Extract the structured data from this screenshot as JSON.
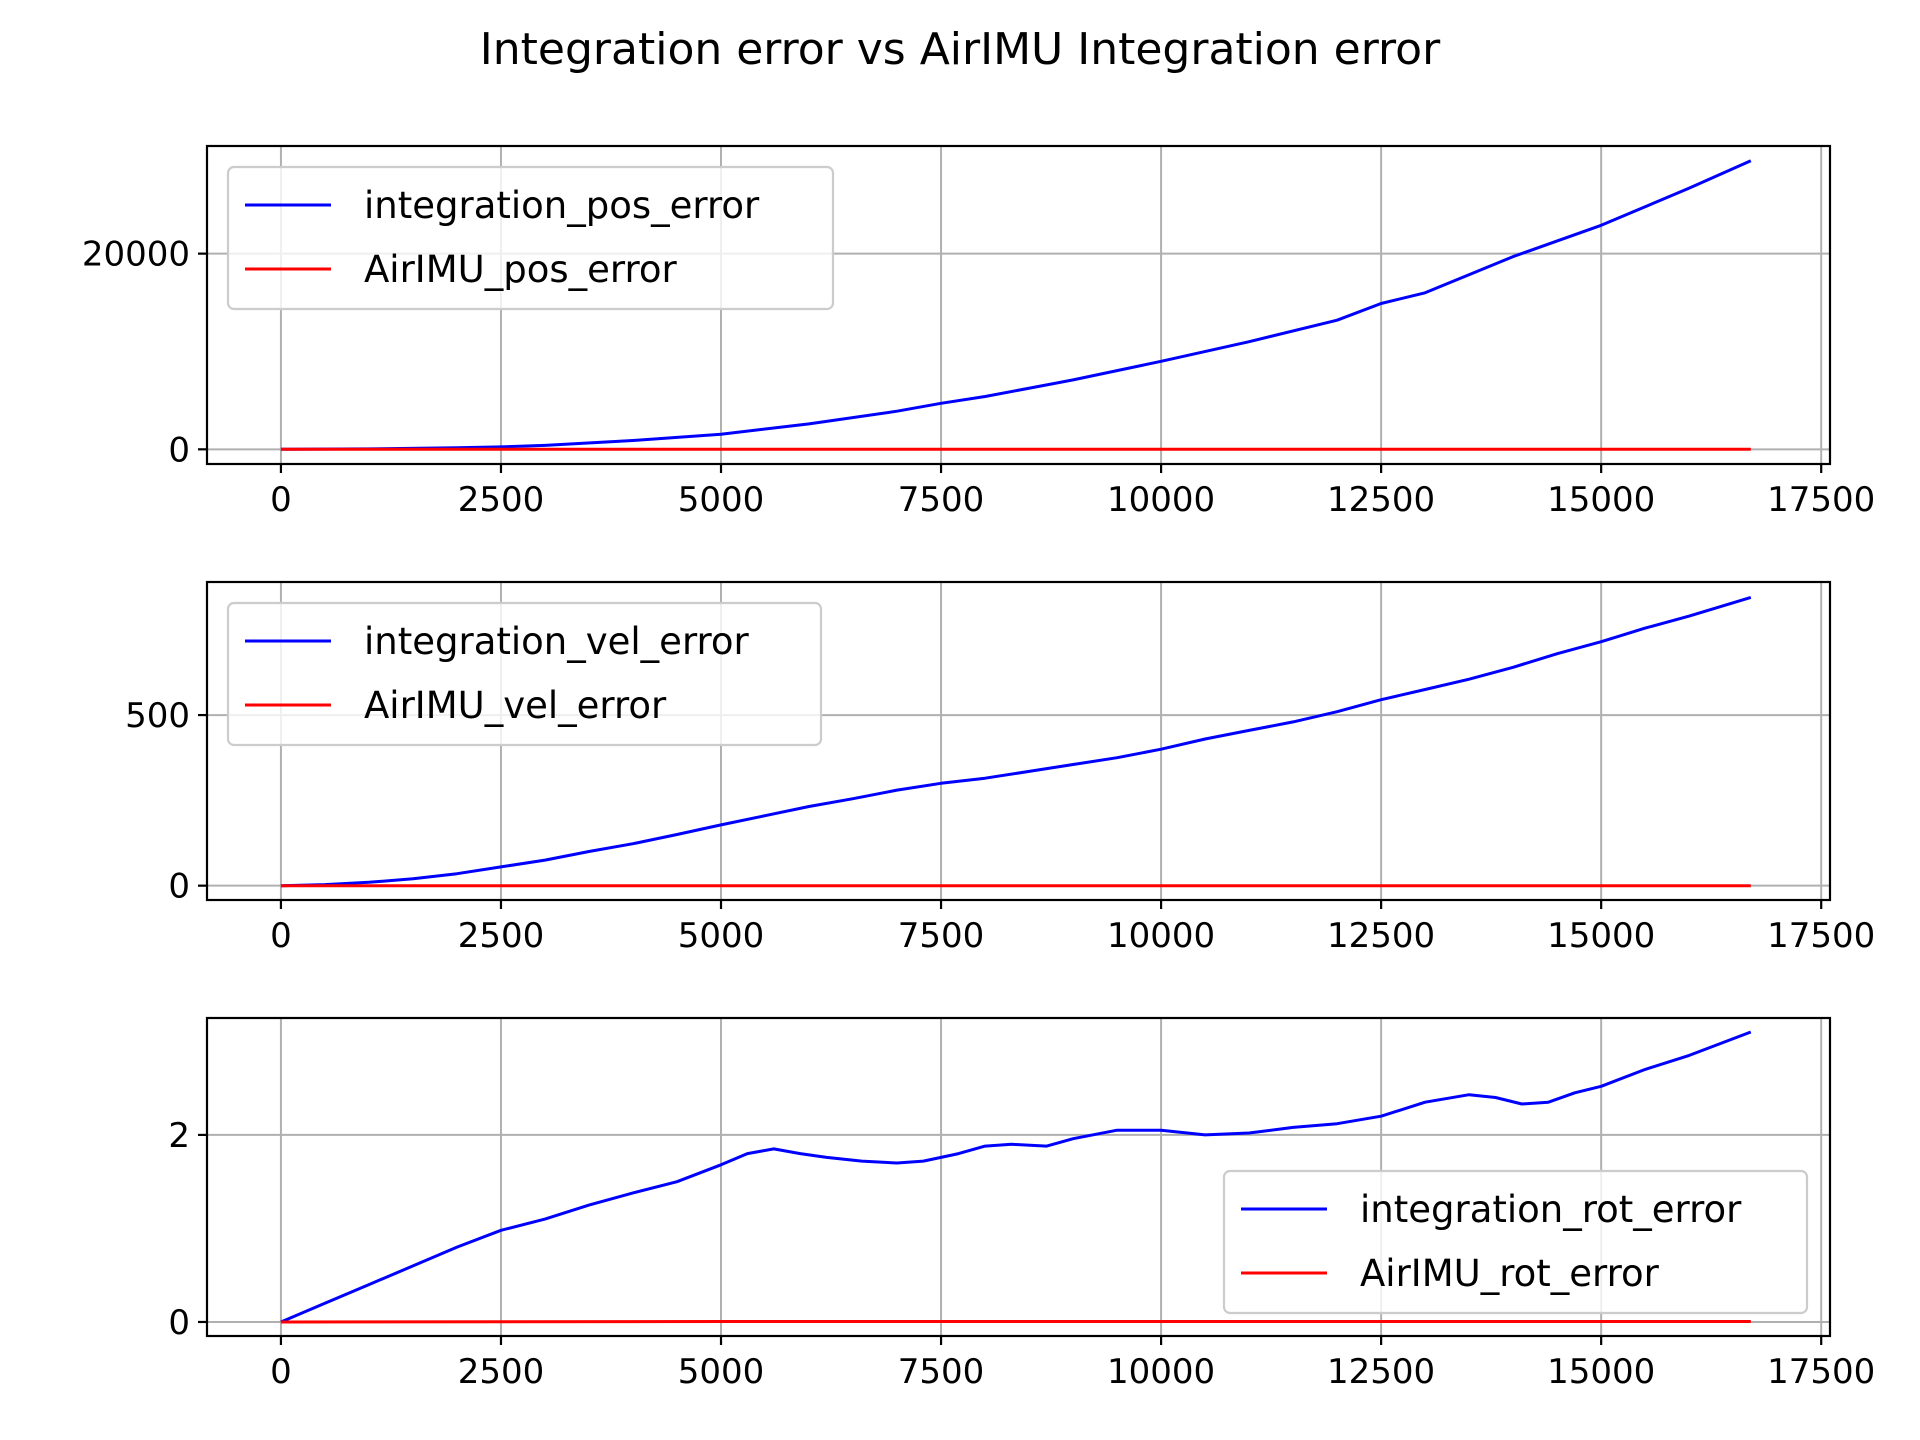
{
  "figure": {
    "title": "Integration error vs AirIMU Integration error"
  },
  "chart_data": [
    {
      "type": "line",
      "title": "",
      "xlabel": "",
      "ylabel": "",
      "xlim": [
        -840,
        17600
      ],
      "ylim": [
        -1500,
        31000
      ],
      "xticks": [
        0,
        2500,
        5000,
        7500,
        10000,
        12500,
        15000,
        17500
      ],
      "xtick_labels": [
        "0",
        "2500",
        "5000",
        "7500",
        "10000",
        "12500",
        "15000",
        "17500"
      ],
      "yticks": [
        0,
        20000
      ],
      "ytick_labels": [
        "0",
        "20000"
      ],
      "grid": true,
      "legend_position": "upper left",
      "series": [
        {
          "name": "integration_pos_error",
          "color": "#0000ff",
          "x": [
            0,
            1000,
            2000,
            2500,
            3000,
            4000,
            5000,
            6000,
            7000,
            7500,
            8000,
            9000,
            10000,
            11000,
            12000,
            12500,
            13000,
            14000,
            15000,
            16000,
            16700
          ],
          "y": [
            0,
            40,
            160,
            250,
            400,
            900,
            1550,
            2600,
            3900,
            4700,
            5400,
            7100,
            9000,
            11000,
            13200,
            14900,
            16000,
            19700,
            22900,
            26700,
            29500
          ]
        },
        {
          "name": "AirIMU_pos_error",
          "color": "#ff0000",
          "x": [
            0,
            5000,
            10000,
            16700
          ],
          "y": [
            0,
            0,
            0,
            0
          ]
        }
      ]
    },
    {
      "type": "line",
      "title": "",
      "xlabel": "",
      "ylabel": "",
      "xlim": [
        -840,
        17600
      ],
      "ylim": [
        -42,
        890
      ],
      "xticks": [
        0,
        2500,
        5000,
        7500,
        10000,
        12500,
        15000,
        17500
      ],
      "xtick_labels": [
        "0",
        "2500",
        "5000",
        "7500",
        "10000",
        "12500",
        "15000",
        "17500"
      ],
      "yticks": [
        0,
        500
      ],
      "ytick_labels": [
        "0",
        "500"
      ],
      "grid": true,
      "legend_position": "upper left",
      "series": [
        {
          "name": "integration_vel_error",
          "color": "#0000ff",
          "x": [
            0,
            500,
            1000,
            1500,
            2000,
            2500,
            3000,
            3500,
            4000,
            4500,
            5000,
            5500,
            6000,
            6500,
            7000,
            7500,
            8000,
            8500,
            9000,
            9500,
            10000,
            10500,
            11000,
            11500,
            12000,
            12500,
            13000,
            13500,
            14000,
            14500,
            15000,
            15500,
            16000,
            16700
          ],
          "y": [
            0,
            3,
            10,
            20,
            35,
            55,
            75,
            100,
            123,
            150,
            178,
            205,
            232,
            255,
            280,
            300,
            315,
            335,
            355,
            375,
            400,
            430,
            455,
            480,
            510,
            545,
            575,
            605,
            640,
            680,
            715,
            755,
            790,
            845
          ]
        },
        {
          "name": "AirIMU_vel_error",
          "color": "#ff0000",
          "x": [
            0,
            5000,
            10000,
            16700
          ],
          "y": [
            0,
            0,
            0,
            0
          ]
        }
      ]
    },
    {
      "type": "line",
      "title": "",
      "xlabel": "",
      "ylabel": "",
      "xlim": [
        -840,
        17600
      ],
      "ylim": [
        -0.15,
        3.25
      ],
      "xticks": [
        0,
        2500,
        5000,
        7500,
        10000,
        12500,
        15000,
        17500
      ],
      "xtick_labels": [
        "0",
        "2500",
        "5000",
        "7500",
        "10000",
        "12500",
        "15000",
        "17500"
      ],
      "yticks": [
        0,
        2
      ],
      "ytick_labels": [
        "0",
        "2"
      ],
      "grid": true,
      "legend_position": "lower right",
      "series": [
        {
          "name": "integration_rot_error",
          "color": "#0000ff",
          "x": [
            0,
            500,
            1000,
            1500,
            2000,
            2500,
            3000,
            3500,
            4000,
            4500,
            5000,
            5300,
            5600,
            5900,
            6200,
            6600,
            7000,
            7300,
            7700,
            8000,
            8300,
            8700,
            9000,
            9500,
            10000,
            10500,
            11000,
            11500,
            12000,
            12500,
            13000,
            13500,
            13800,
            14100,
            14400,
            14700,
            15000,
            15500,
            16000,
            16700
          ],
          "y": [
            0,
            0.2,
            0.4,
            0.6,
            0.8,
            0.98,
            1.1,
            1.25,
            1.38,
            1.5,
            1.68,
            1.8,
            1.85,
            1.8,
            1.76,
            1.72,
            1.7,
            1.72,
            1.8,
            1.88,
            1.9,
            1.88,
            1.96,
            2.05,
            2.05,
            2.0,
            2.02,
            2.08,
            2.12,
            2.2,
            2.35,
            2.43,
            2.4,
            2.33,
            2.35,
            2.45,
            2.52,
            2.7,
            2.85,
            3.1
          ]
        },
        {
          "name": "AirIMU_rot_error",
          "color": "#ff0000",
          "x": [
            0,
            5000,
            10000,
            16700
          ],
          "y": [
            0,
            0.005,
            0.005,
            0.005
          ]
        }
      ]
    }
  ]
}
